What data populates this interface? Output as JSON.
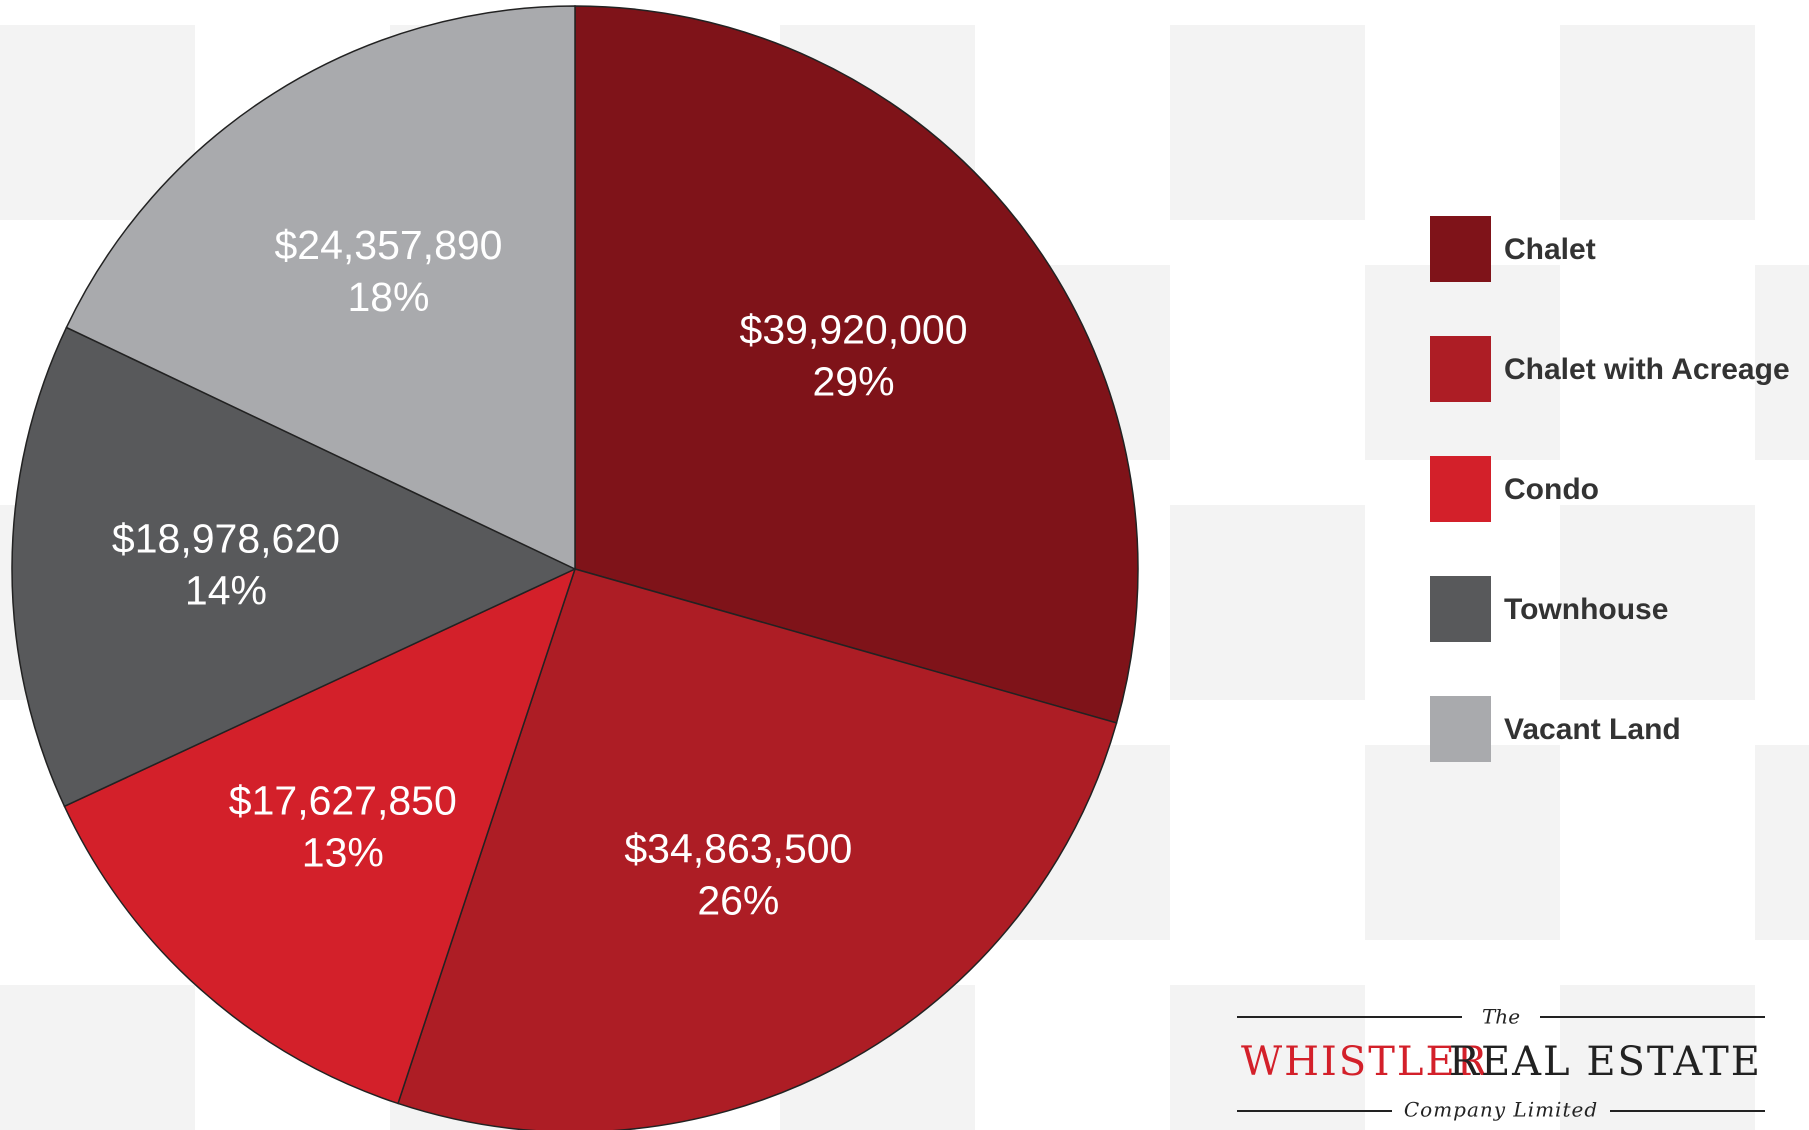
{
  "chart_data": {
    "type": "pie",
    "categories": [
      "Chalet",
      "Chalet with Acreage",
      "Condo",
      "Townhouse",
      "Vacant Land"
    ],
    "values": [
      39920000,
      34863500,
      17627850,
      18978620,
      24357890
    ],
    "value_labels": [
      "$39,920,000",
      "$34,863,500",
      "$17,627,850",
      "$18,978,620",
      "$24,357,890"
    ],
    "percent_labels": [
      "29%",
      "26%",
      "13%",
      "14%",
      "18%"
    ],
    "colors": [
      "#7f1319",
      "#ad1d25",
      "#d3202a",
      "#58595b",
      "#a9aaad"
    ],
    "legend": "right"
  },
  "logo": {
    "the": "The",
    "name_red": "WHISTLER",
    "name_black": "REAL ESTATE",
    "tagline": "Company Limited"
  }
}
